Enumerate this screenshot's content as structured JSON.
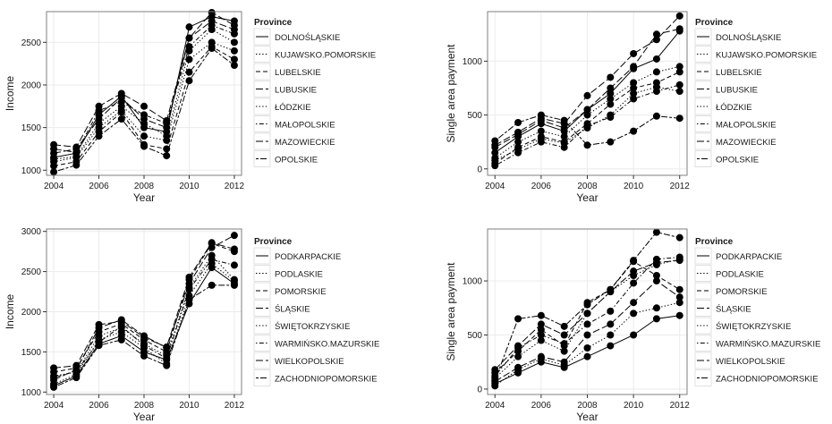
{
  "chart_data": [
    {
      "type": "line",
      "xlabel": "Year",
      "ylabel": "Income",
      "x": [
        2004,
        2005,
        2006,
        2007,
        2008,
        2009,
        2010,
        2011,
        2012
      ],
      "xticks": [
        2004,
        2006,
        2008,
        2010,
        2012
      ],
      "yticks": [
        1000,
        1500,
        2000,
        2500
      ],
      "ylim": [
        940,
        2860
      ],
      "legend_title": "Province",
      "legend_position": "right",
      "grid": true,
      "series": [
        {
          "name": "DOLNOŚLĄSKIE",
          "values": [
            1150,
            1200,
            1650,
            1870,
            1500,
            1450,
            2680,
            2800,
            2750
          ]
        },
        {
          "name": "KUJAWSKO.POMORSKIE",
          "values": [
            1100,
            1150,
            1500,
            1700,
            1400,
            1350,
            2300,
            2500,
            2400
          ]
        },
        {
          "name": "LUBELSKIE",
          "values": [
            1050,
            1100,
            1450,
            1680,
            1300,
            1250,
            2150,
            2450,
            2300
          ]
        },
        {
          "name": "LUBUSKIE",
          "values": [
            1200,
            1250,
            1600,
            1850,
            1600,
            1500,
            2550,
            2750,
            2650
          ]
        },
        {
          "name": "ŁÓDZKIE",
          "values": [
            1130,
            1160,
            1550,
            1750,
            1550,
            1400,
            2400,
            2650,
            2500
          ]
        },
        {
          "name": "MAŁOPOLSKIE",
          "values": [
            1250,
            1210,
            1700,
            1800,
            1650,
            1550,
            2450,
            2700,
            2600
          ]
        },
        {
          "name": "MAZOWIECKIE",
          "values": [
            1300,
            1270,
            1750,
            1900,
            1750,
            1580,
            2550,
            2850,
            2700
          ]
        },
        {
          "name": "OPOLSKIE",
          "values": [
            980,
            1060,
            1400,
            1600,
            1280,
            1170,
            2050,
            2430,
            2230
          ]
        }
      ]
    },
    {
      "type": "line",
      "xlabel": "Year",
      "ylabel": "Single area payment",
      "x": [
        2004,
        2005,
        2006,
        2007,
        2008,
        2009,
        2010,
        2011,
        2012
      ],
      "xticks": [
        2004,
        2006,
        2008,
        2010,
        2012
      ],
      "yticks": [
        0,
        500,
        1000
      ],
      "ylim": [
        -60,
        1460
      ],
      "legend_title": "Province",
      "legend_position": "right",
      "grid": true,
      "series": [
        {
          "name": "DOLNOŚLĄSKIE",
          "values": [
            150,
            300,
            420,
            350,
            550,
            700,
            930,
            1020,
            1280
          ]
        },
        {
          "name": "KUJAWSKO.POMORSKIE",
          "values": [
            100,
            250,
            350,
            300,
            500,
            650,
            800,
            900,
            950
          ]
        },
        {
          "name": "LUBELSKIE",
          "values": [
            50,
            200,
            300,
            250,
            420,
            600,
            750,
            800,
            900
          ]
        },
        {
          "name": "LUBUSKIE",
          "values": [
            200,
            320,
            450,
            380,
            550,
            750,
            950,
            1250,
            1300
          ]
        },
        {
          "name": "ŁÓDZKIE",
          "values": [
            80,
            180,
            280,
            240,
            380,
            500,
            700,
            760,
            720
          ]
        },
        {
          "name": "MAŁOPOLSKIE",
          "values": [
            30,
            150,
            250,
            200,
            400,
            480,
            650,
            720,
            780
          ]
        },
        {
          "name": "MAZOWIECKIE",
          "values": [
            220,
            340,
            470,
            420,
            680,
            850,
            1070,
            1200,
            1420
          ]
        },
        {
          "name": "OPOLSKIE",
          "values": [
            260,
            430,
            500,
            450,
            220,
            250,
            350,
            490,
            470
          ]
        }
      ]
    },
    {
      "type": "line",
      "xlabel": "Year",
      "ylabel": "Income",
      "x": [
        2004,
        2005,
        2006,
        2007,
        2008,
        2009,
        2010,
        2011,
        2012
      ],
      "xticks": [
        2004,
        2006,
        2008,
        2010,
        2012
      ],
      "yticks": [
        1000,
        1500,
        2000,
        2500,
        3000
      ],
      "ylim": [
        970,
        3030
      ],
      "legend_title": "Province",
      "legend_position": "right",
      "grid": true,
      "series": [
        {
          "name": "PODKARPACKIE",
          "values": [
            1080,
            1200,
            1600,
            1700,
            1500,
            1400,
            2100,
            2550,
            2350
          ]
        },
        {
          "name": "PODLASKIE",
          "values": [
            1200,
            1250,
            1700,
            1800,
            1600,
            1450,
            2300,
            2700,
            2400
          ]
        },
        {
          "name": "POMORSKIE",
          "values": [
            1250,
            1300,
            1750,
            1850,
            1650,
            1500,
            2400,
            2850,
            2750
          ]
        },
        {
          "name": "ŚLĄSKIE",
          "values": [
            1150,
            1280,
            1800,
            1900,
            1700,
            1550,
            2350,
            2800,
            2950
          ]
        },
        {
          "name": "ŚWIĘTOKRZYSKIE",
          "values": [
            1100,
            1220,
            1650,
            1750,
            1550,
            1350,
            2200,
            2600,
            2380
          ]
        },
        {
          "name": "WARMIŃSKO.MAZURSKIE",
          "values": [
            1180,
            1260,
            1620,
            1820,
            1580,
            1420,
            2280,
            2650,
            2580
          ]
        },
        {
          "name": "WIELKOPOLSKIE",
          "values": [
            1300,
            1330,
            1840,
            1880,
            1680,
            1560,
            2430,
            2860,
            2780
          ]
        },
        {
          "name": "ZACHODNIOPOMORSKIE",
          "values": [
            1060,
            1180,
            1580,
            1650,
            1450,
            1330,
            2150,
            2330,
            2330
          ]
        }
      ]
    },
    {
      "type": "line",
      "xlabel": "Year",
      "ylabel": "Single area payment",
      "x": [
        2004,
        2005,
        2006,
        2007,
        2008,
        2009,
        2010,
        2011,
        2012
      ],
      "xticks": [
        2004,
        2006,
        2008,
        2010,
        2012
      ],
      "yticks": [
        0,
        500,
        1000
      ],
      "ylim": [
        -50,
        1480
      ],
      "legend_title": "Province",
      "legend_position": "right",
      "grid": true,
      "series": [
        {
          "name": "PODKARPACKIE",
          "values": [
            50,
            150,
            250,
            200,
            300,
            400,
            500,
            650,
            680
          ]
        },
        {
          "name": "PODLASKIE",
          "values": [
            100,
            300,
            450,
            350,
            700,
            900,
            1050,
            1150,
            1200
          ]
        },
        {
          "name": "POMORSKIE",
          "values": [
            150,
            350,
            550,
            400,
            800,
            920,
            1180,
            1050,
            920
          ]
        },
        {
          "name": "ŚLĄSKIE",
          "values": [
            70,
            200,
            300,
            250,
            500,
            600,
            800,
            1000,
            850
          ]
        },
        {
          "name": "ŚWIĘTOKRZYSKIE",
          "values": [
            30,
            180,
            280,
            220,
            380,
            500,
            700,
            750,
            800
          ]
        },
        {
          "name": "WARMIŃSKO.MAZURSKIE",
          "values": [
            120,
            380,
            500,
            420,
            600,
            720,
            980,
            1200,
            1220
          ]
        },
        {
          "name": "WIELKOPOLSKIE",
          "values": [
            180,
            400,
            600,
            500,
            700,
            900,
            1090,
            1170,
            1190
          ]
        },
        {
          "name": "ZACHODNIOPOMORSKIE",
          "values": [
            80,
            650,
            680,
            580,
            780,
            920,
            1190,
            1450,
            1400
          ]
        }
      ]
    }
  ],
  "linetypes": [
    "solid",
    "dotted",
    "dashed",
    "longdash",
    "dotted",
    "dotdash",
    "longdash",
    "twodash"
  ],
  "colors": {
    "line": "#000000",
    "panel_border": "#7f7f7f",
    "grid": "#ebebeb",
    "text": "#1a1a1a",
    "legend_box": "#cccccc"
  }
}
